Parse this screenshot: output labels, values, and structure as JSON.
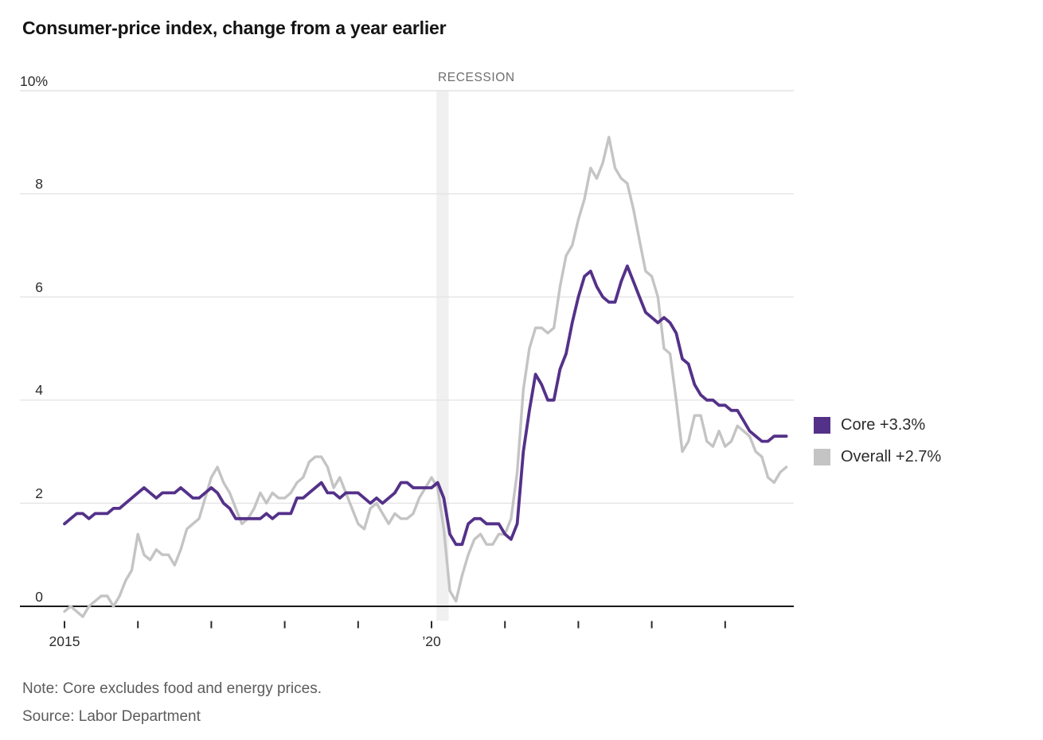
{
  "title": "Consumer-price index, change from a year earlier",
  "recession": {
    "label": "RECESSION",
    "start": "2020-02",
    "end": "2020-04",
    "band_color": "#f0f0f0"
  },
  "legend": [
    {
      "label": "Core +3.3%",
      "color": "#543189"
    },
    {
      "label": "Overall +2.7%",
      "color": "#c4c4c4"
    }
  ],
  "note": "Note: Core excludes food and energy prices.",
  "source": "Source: Labor Department",
  "y_axis": {
    "ticks": [
      {
        "text": "10%",
        "value": 10
      },
      {
        "text": "8",
        "value": 8
      },
      {
        "text": "6",
        "value": 6
      },
      {
        "text": "4",
        "value": 4
      },
      {
        "text": "2",
        "value": 2
      },
      {
        "text": "0",
        "value": 0
      }
    ]
  },
  "x_axis": {
    "tick_years": [
      2015,
      2016,
      2017,
      2018,
      2019,
      2020,
      2021,
      2022,
      2023,
      2024
    ],
    "labels": [
      {
        "text": "2015",
        "year": 2015
      },
      {
        "text": "’20",
        "year": 2020
      }
    ]
  },
  "colors": {
    "gridline": "#e4e4e4",
    "zero_axis": "#1a1a1a",
    "tick_mark": "#2b2b2b"
  },
  "chart_data": {
    "type": "line",
    "title": "Consumer-price index, change from a year earlier",
    "x_start": "2015-01",
    "x_end": "2024-11",
    "frequency": "monthly",
    "ylabel": "percent change from a year earlier",
    "ylim": [
      0,
      10
    ],
    "grid": true,
    "legend_position": "right",
    "recession_span": [
      "2020-02",
      "2020-04"
    ],
    "series": [
      {
        "name": "Core",
        "end_label": "Core +3.3%",
        "latest_value": 3.3,
        "color": "#543189",
        "values": [
          1.6,
          1.7,
          1.8,
          1.8,
          1.7,
          1.8,
          1.8,
          1.8,
          1.9,
          1.9,
          2.0,
          2.1,
          2.2,
          2.3,
          2.2,
          2.1,
          2.2,
          2.2,
          2.2,
          2.3,
          2.2,
          2.1,
          2.1,
          2.2,
          2.3,
          2.2,
          2.0,
          1.9,
          1.7,
          1.7,
          1.7,
          1.7,
          1.7,
          1.8,
          1.7,
          1.8,
          1.8,
          1.8,
          2.1,
          2.1,
          2.2,
          2.3,
          2.4,
          2.2,
          2.2,
          2.1,
          2.2,
          2.2,
          2.2,
          2.1,
          2.0,
          2.1,
          2.0,
          2.1,
          2.2,
          2.4,
          2.4,
          2.3,
          2.3,
          2.3,
          2.3,
          2.4,
          2.1,
          1.4,
          1.2,
          1.2,
          1.6,
          1.7,
          1.7,
          1.6,
          1.6,
          1.6,
          1.4,
          1.3,
          1.6,
          3.0,
          3.8,
          4.5,
          4.3,
          4.0,
          4.0,
          4.6,
          4.9,
          5.5,
          6.0,
          6.4,
          6.5,
          6.2,
          6.0,
          5.9,
          5.9,
          6.3,
          6.6,
          6.3,
          6.0,
          5.7,
          5.6,
          5.5,
          5.6,
          5.5,
          5.3,
          4.8,
          4.7,
          4.3,
          4.1,
          4.0,
          4.0,
          3.9,
          3.9,
          3.8,
          3.8,
          3.6,
          3.4,
          3.3,
          3.2,
          3.2,
          3.3,
          3.3,
          3.3
        ]
      },
      {
        "name": "Overall",
        "end_label": "Overall +2.7%",
        "latest_value": 2.7,
        "color": "#c4c4c4",
        "values": [
          -0.1,
          0.0,
          -0.1,
          -0.2,
          0.0,
          0.1,
          0.2,
          0.2,
          0.0,
          0.2,
          0.5,
          0.7,
          1.4,
          1.0,
          0.9,
          1.1,
          1.0,
          1.0,
          0.8,
          1.1,
          1.5,
          1.6,
          1.7,
          2.1,
          2.5,
          2.7,
          2.4,
          2.2,
          1.9,
          1.6,
          1.7,
          1.9,
          2.2,
          2.0,
          2.2,
          2.1,
          2.1,
          2.2,
          2.4,
          2.5,
          2.8,
          2.9,
          2.9,
          2.7,
          2.3,
          2.5,
          2.2,
          1.9,
          1.6,
          1.5,
          1.9,
          2.0,
          1.8,
          1.6,
          1.8,
          1.7,
          1.7,
          1.8,
          2.1,
          2.3,
          2.5,
          2.3,
          1.5,
          0.3,
          0.1,
          0.6,
          1.0,
          1.3,
          1.4,
          1.2,
          1.2,
          1.4,
          1.4,
          1.7,
          2.6,
          4.2,
          5.0,
          5.4,
          5.4,
          5.3,
          5.4,
          6.2,
          6.8,
          7.0,
          7.5,
          7.9,
          8.5,
          8.3,
          8.6,
          9.1,
          8.5,
          8.3,
          8.2,
          7.7,
          7.1,
          6.5,
          6.4,
          6.0,
          5.0,
          4.9,
          4.0,
          3.0,
          3.2,
          3.7,
          3.7,
          3.2,
          3.1,
          3.4,
          3.1,
          3.2,
          3.5,
          3.4,
          3.3,
          3.0,
          2.9,
          2.5,
          2.4,
          2.6,
          2.7
        ]
      }
    ]
  }
}
